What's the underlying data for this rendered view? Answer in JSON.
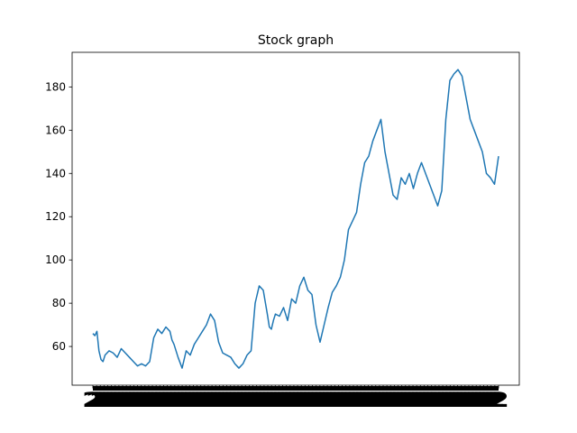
{
  "chart_data": {
    "type": "line",
    "title": "Stock graph",
    "xlabel": "",
    "ylabel": "",
    "x_range": [
      0,
      100
    ],
    "ylim": [
      42.1,
      196.0
    ],
    "yticks": [
      60,
      80,
      100,
      120,
      140,
      160,
      180
    ],
    "grid": false,
    "legend": "none",
    "line_color": "#1f77b4",
    "x_tick_text": "2",
    "x_tick_count": 110,
    "series": [
      {
        "x": [
          0,
          0.5,
          1,
          1.5,
          2,
          2.5,
          3,
          4,
          5,
          6,
          7,
          8,
          9,
          10,
          11,
          12,
          13,
          14,
          15,
          16,
          17,
          18,
          19,
          19.5,
          20,
          21,
          22,
          23,
          24,
          25,
          26,
          27,
          28,
          29,
          30,
          31,
          32,
          33,
          34,
          35,
          36,
          37,
          38,
          39,
          40,
          41,
          42,
          43,
          43.5,
          44,
          44.5,
          45,
          46,
          47,
          48,
          49,
          50,
          51,
          52,
          53,
          54,
          55,
          56,
          57,
          58,
          59,
          60,
          61,
          62,
          63,
          64,
          65,
          66,
          67,
          68,
          69,
          70,
          71,
          72,
          73,
          74,
          75,
          76,
          77,
          78,
          79,
          80,
          81,
          82,
          83,
          84,
          85,
          86,
          87,
          88,
          89,
          90,
          91,
          92,
          93,
          94,
          95,
          96,
          97,
          98,
          99,
          100
        ],
        "y": [
          66,
          65,
          67,
          58,
          54,
          53,
          56,
          58,
          57,
          55,
          59,
          57,
          55,
          53,
          51,
          52,
          51,
          53,
          64,
          68,
          66,
          69,
          67,
          63,
          61,
          55,
          50,
          58,
          56,
          61,
          64,
          67,
          70,
          75,
          72,
          62,
          57,
          56,
          55,
          52,
          50,
          52,
          56,
          58,
          80,
          88,
          86,
          75,
          69,
          68,
          72,
          75,
          74,
          78,
          72,
          82,
          80,
          88,
          92,
          86,
          84,
          70,
          62,
          70,
          78,
          85,
          88,
          92,
          100,
          114,
          118,
          122,
          135,
          145,
          148,
          155,
          160,
          165,
          150,
          140,
          130,
          128,
          138,
          135,
          140,
          133,
          140,
          145,
          140,
          135,
          130,
          125,
          132,
          165,
          183,
          186,
          188,
          185,
          175,
          165,
          160,
          155,
          150,
          140,
          138,
          135,
          148
        ]
      }
    ]
  }
}
